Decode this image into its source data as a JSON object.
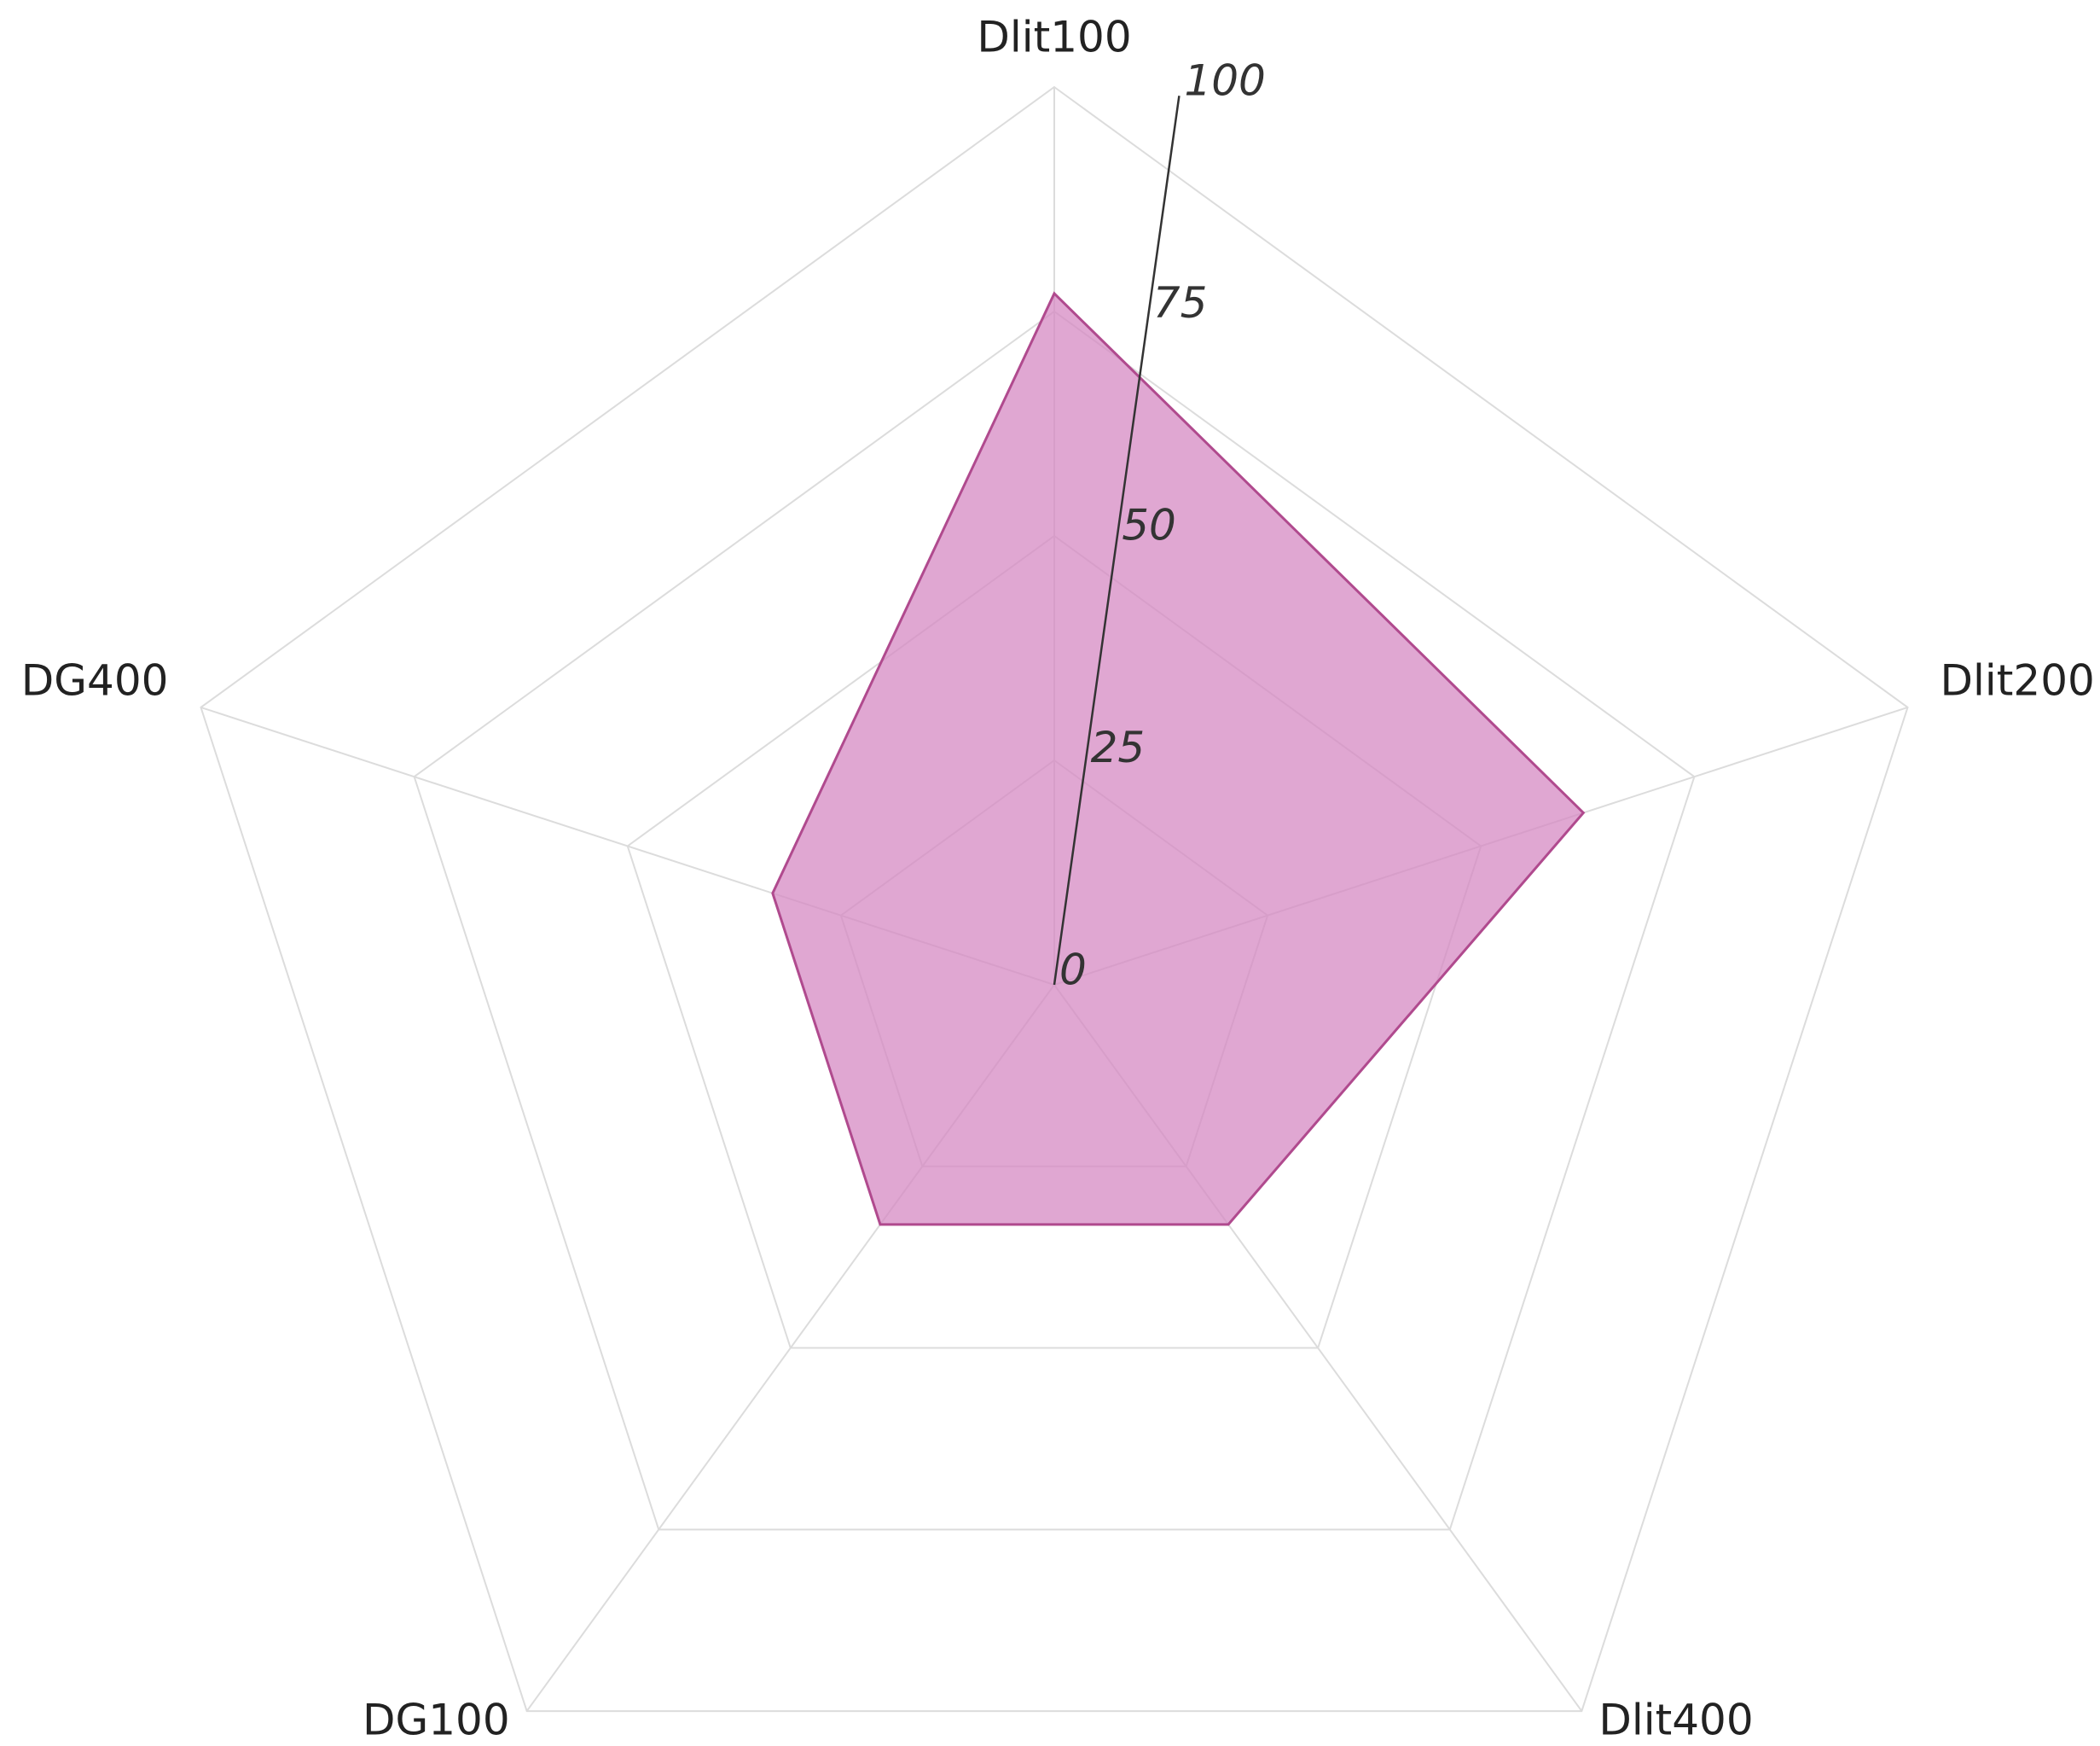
{
  "chart_data": {
    "type": "radar",
    "categories": [
      "Dlit100",
      "Dlit200",
      "Dlit400",
      "DG100",
      "DG400"
    ],
    "values": [
      77,
      62,
      33,
      33,
      33
    ],
    "color": "#d58ac3",
    "rlim": [
      0,
      100
    ],
    "rticks": [
      0,
      25,
      50,
      75,
      100
    ],
    "grid": true
  }
}
